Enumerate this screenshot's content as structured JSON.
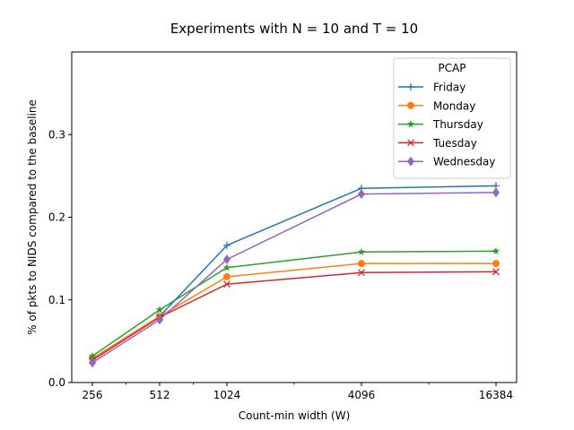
{
  "chart_data": {
    "type": "line",
    "title": "Experiments with N = 10 and T = 10",
    "xlabel": "Count-min width (W)",
    "ylabel": "% of pkts to NIDS compared to the baseline",
    "x_categories": [
      "256",
      "512",
      "1024",
      "4096",
      "16384"
    ],
    "x_values": [
      256,
      512,
      1024,
      4096,
      16384
    ],
    "ylim": [
      0,
      0.4
    ],
    "yticks": [
      "0.0",
      "0.1",
      "0.2",
      "0.3"
    ],
    "grid": false,
    "legend": {
      "title": "PCAP",
      "position": "top-right"
    },
    "series": [
      {
        "name": "Friday",
        "color": "#1f77b4",
        "marker": "plus",
        "values": [
          0.029,
          0.08,
          0.166,
          0.235,
          0.238
        ]
      },
      {
        "name": "Monday",
        "color": "#ff7f0e",
        "marker": "circle",
        "values": [
          0.029,
          0.08,
          0.128,
          0.144,
          0.144
        ]
      },
      {
        "name": "Thursday",
        "color": "#2ca02c",
        "marker": "star",
        "values": [
          0.032,
          0.088,
          0.139,
          0.158,
          0.159
        ]
      },
      {
        "name": "Tuesday",
        "color": "#d62728",
        "marker": "x",
        "values": [
          0.027,
          0.079,
          0.119,
          0.133,
          0.134
        ]
      },
      {
        "name": "Wednesday",
        "color": "#9467bd",
        "marker": "diamond",
        "values": [
          0.024,
          0.076,
          0.149,
          0.228,
          0.23
        ]
      }
    ]
  }
}
